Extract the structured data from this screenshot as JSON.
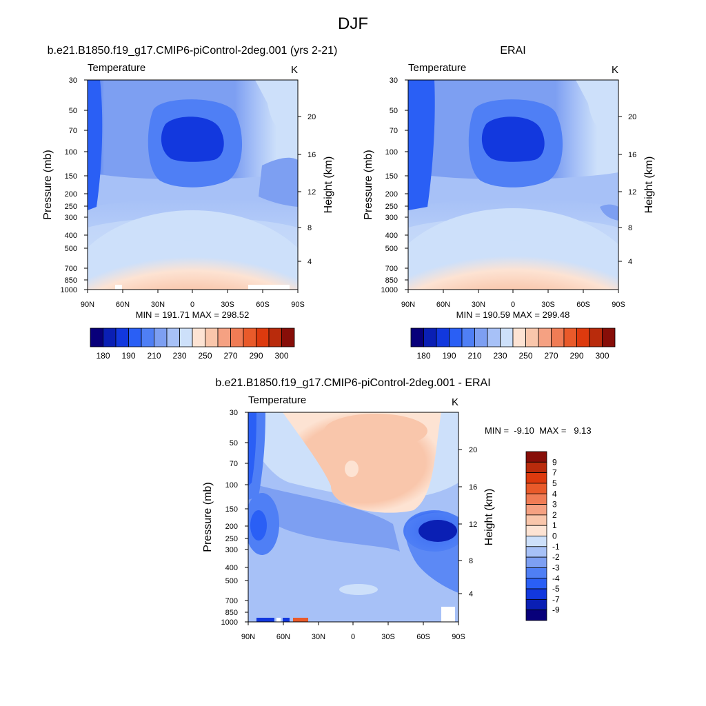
{
  "figure": {
    "title": "DJF",
    "colors": {
      "abs_palette": [
        "#08007a",
        "#0a1fb4",
        "#1238de",
        "#2a5ff5",
        "#4f7ff5",
        "#7d9ff2",
        "#a7c1f7",
        "#cde0fa",
        "#fde3d3",
        "#f9c6ab",
        "#f5a182",
        "#f07c55",
        "#e95a2a",
        "#dd3a0e",
        "#b92b0c",
        "#870e08"
      ],
      "diff_palette": [
        "#08007a",
        "#0a1fb4",
        "#1238de",
        "#2a5ff5",
        "#4f7ff5",
        "#7d9ff2",
        "#a7c1f7",
        "#cde0fa",
        "#fde3d3",
        "#f9c6ab",
        "#f5a182",
        "#f07c55",
        "#e95a2a",
        "#dd3a0e",
        "#b92b0c",
        "#870e08"
      ]
    }
  },
  "chart_data": [
    {
      "type": "heatmap",
      "title": "b.e21.B1850.f19_g17.CMIP6-piControl-2deg.001 (yrs 2-21)",
      "variable": "Temperature",
      "units": "K",
      "xlabel": "",
      "ylabel": "Pressure (mb)",
      "ylabel_right": "Height (km)",
      "x_ticks": [
        "90N",
        "60N",
        "30N",
        "0",
        "30S",
        "60S",
        "90S"
      ],
      "y_ticks": [
        "30",
        "50",
        "70",
        "100",
        "150",
        "200",
        "250",
        "300",
        "400",
        "500",
        "700",
        "850",
        "1000"
      ],
      "height_ticks": [
        "4",
        "8",
        "12",
        "16",
        "20"
      ],
      "stats": "MIN = 191.71  MAX = 298.52",
      "min": 191.71,
      "max": 298.52,
      "ylim": [
        1000,
        30
      ],
      "y_scale": "log",
      "colorbar_labels": [
        "180",
        "190",
        "210",
        "230",
        "250",
        "270",
        "290",
        "300"
      ]
    },
    {
      "type": "heatmap",
      "title": "ERAI",
      "variable": "Temperature",
      "units": "K",
      "xlabel": "",
      "ylabel": "Pressure (mb)",
      "ylabel_right": "Height (km)",
      "x_ticks": [
        "90N",
        "60N",
        "30N",
        "0",
        "30S",
        "60S",
        "90S"
      ],
      "y_ticks": [
        "30",
        "50",
        "70",
        "100",
        "150",
        "200",
        "250",
        "300",
        "400",
        "500",
        "700",
        "850",
        "1000"
      ],
      "height_ticks": [
        "4",
        "8",
        "12",
        "16",
        "20"
      ],
      "stats": "MIN = 190.59  MAX = 299.48",
      "min": 190.59,
      "max": 299.48,
      "ylim": [
        1000,
        30
      ],
      "y_scale": "log",
      "colorbar_labels": [
        "180",
        "190",
        "210",
        "230",
        "250",
        "270",
        "290",
        "300"
      ]
    },
    {
      "type": "heatmap",
      "title": "b.e21.B1850.f19_g17.CMIP6-piControl-2deg.001 - ERAI",
      "variable": "Temperature",
      "units": "K",
      "xlabel": "",
      "ylabel": "Pressure (mb)",
      "ylabel_right": "Height (km)",
      "x_ticks": [
        "90N",
        "60N",
        "30N",
        "0",
        "30S",
        "60S",
        "90S"
      ],
      "y_ticks": [
        "30",
        "50",
        "70",
        "100",
        "150",
        "200",
        "250",
        "300",
        "400",
        "500",
        "700",
        "850",
        "1000"
      ],
      "height_ticks": [
        "4",
        "8",
        "12",
        "16",
        "20"
      ],
      "stats": "MIN =  -9.10  MAX =   9.13",
      "min": -9.1,
      "max": 9.13,
      "ylim": [
        1000,
        30
      ],
      "y_scale": "log",
      "colorbar_labels": [
        "9",
        "7",
        "5",
        "4",
        "3",
        "2",
        "1",
        "0",
        "-1",
        "-2",
        "-3",
        "-4",
        "-5",
        "-7",
        "-9"
      ]
    }
  ]
}
